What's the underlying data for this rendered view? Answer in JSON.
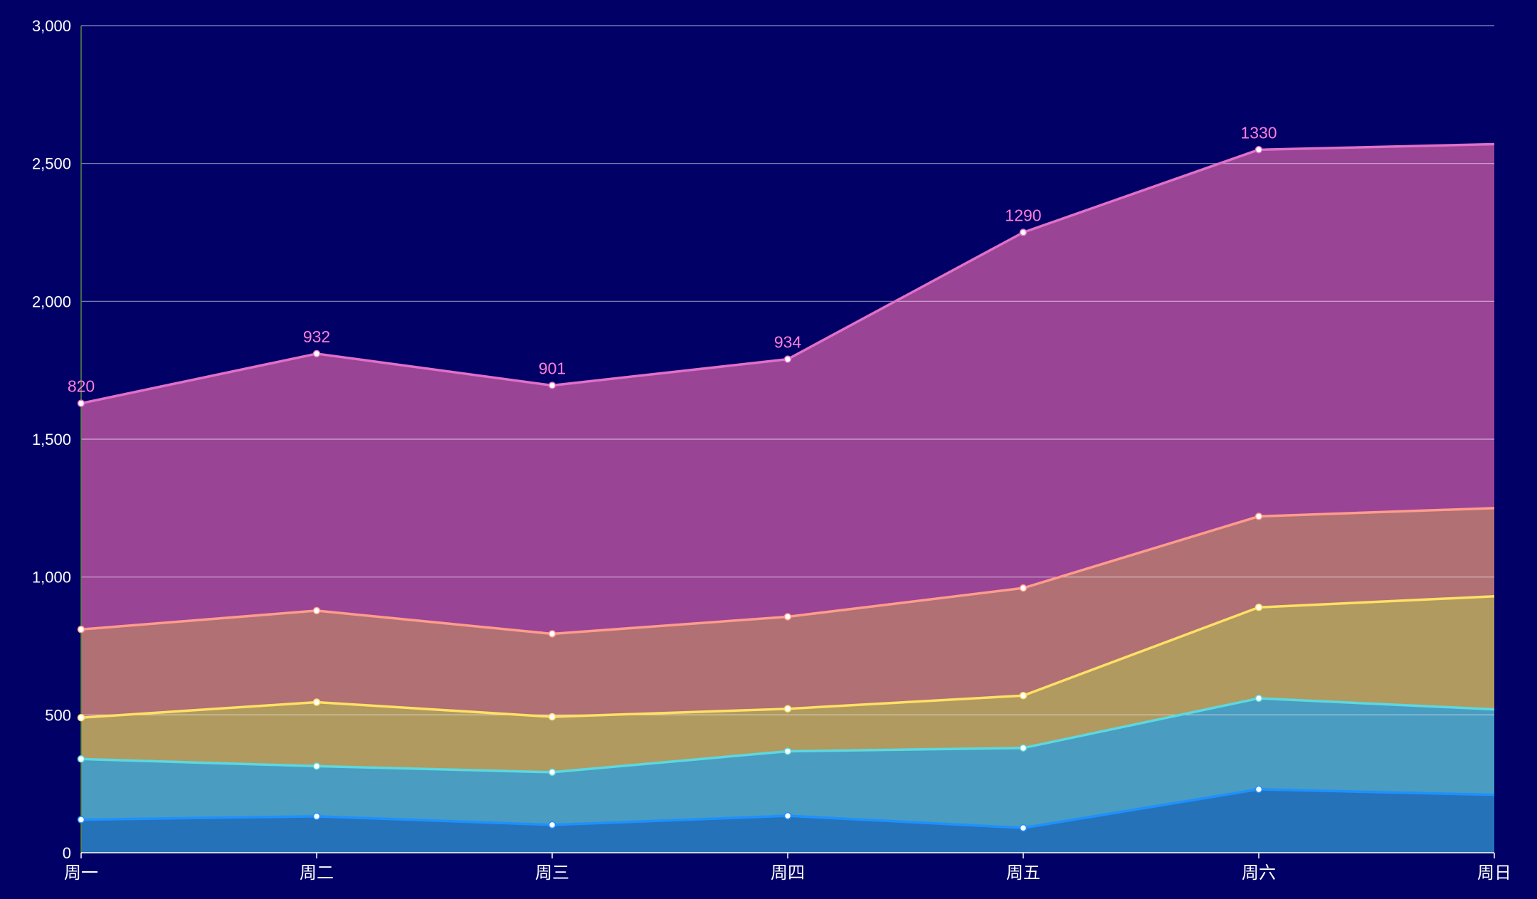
{
  "chart_data": {
    "type": "area",
    "stacked": true,
    "title": "",
    "xlabel": "",
    "ylabel": "",
    "categories": [
      "周一",
      "周二",
      "周三",
      "周四",
      "周五",
      "周六",
      "周日"
    ],
    "ylim": [
      0,
      3000
    ],
    "yticks": [
      0,
      500,
      1000,
      1500,
      2000,
      2500,
      3000
    ],
    "ytick_labels": [
      "0",
      "500",
      "1,000",
      "1,500",
      "2,000",
      "2,500",
      "3,000"
    ],
    "grid": true,
    "legend": "none",
    "background_color": "#000066",
    "series": [
      {
        "values": [
          120,
          132,
          101,
          134,
          90,
          230,
          210
        ],
        "line_color": "#1e90ff",
        "fill_color": "#2672b8"
      },
      {
        "values": [
          220,
          182,
          191,
          234,
          290,
          330,
          310
        ],
        "line_color": "#5cd8e0",
        "fill_color": "#4a9cc0"
      },
      {
        "values": [
          150,
          232,
          201,
          154,
          190,
          330,
          410
        ],
        "line_color": "#ffe066",
        "fill_color": "#b09a60"
      },
      {
        "values": [
          320,
          332,
          301,
          334,
          390,
          330,
          320
        ],
        "line_color": "#ff9c8c",
        "fill_color": "#b07074"
      },
      {
        "values": [
          820,
          932,
          901,
          934,
          1290,
          1330,
          1320
        ],
        "line_color": "#e070c8",
        "fill_color": "#9a4496"
      }
    ],
    "data_labels": {
      "series_index": 4,
      "values": [
        "820",
        "932",
        "901",
        "934",
        "1290",
        "1330",
        ""
      ],
      "color": "#ff7fd8"
    },
    "colors": {
      "grid": "#ffffff",
      "axis": "#ffffff",
      "tick_text": "#ffffff",
      "y_axis_line": "#5b8a3a",
      "point_fill": "#ffffff"
    }
  }
}
